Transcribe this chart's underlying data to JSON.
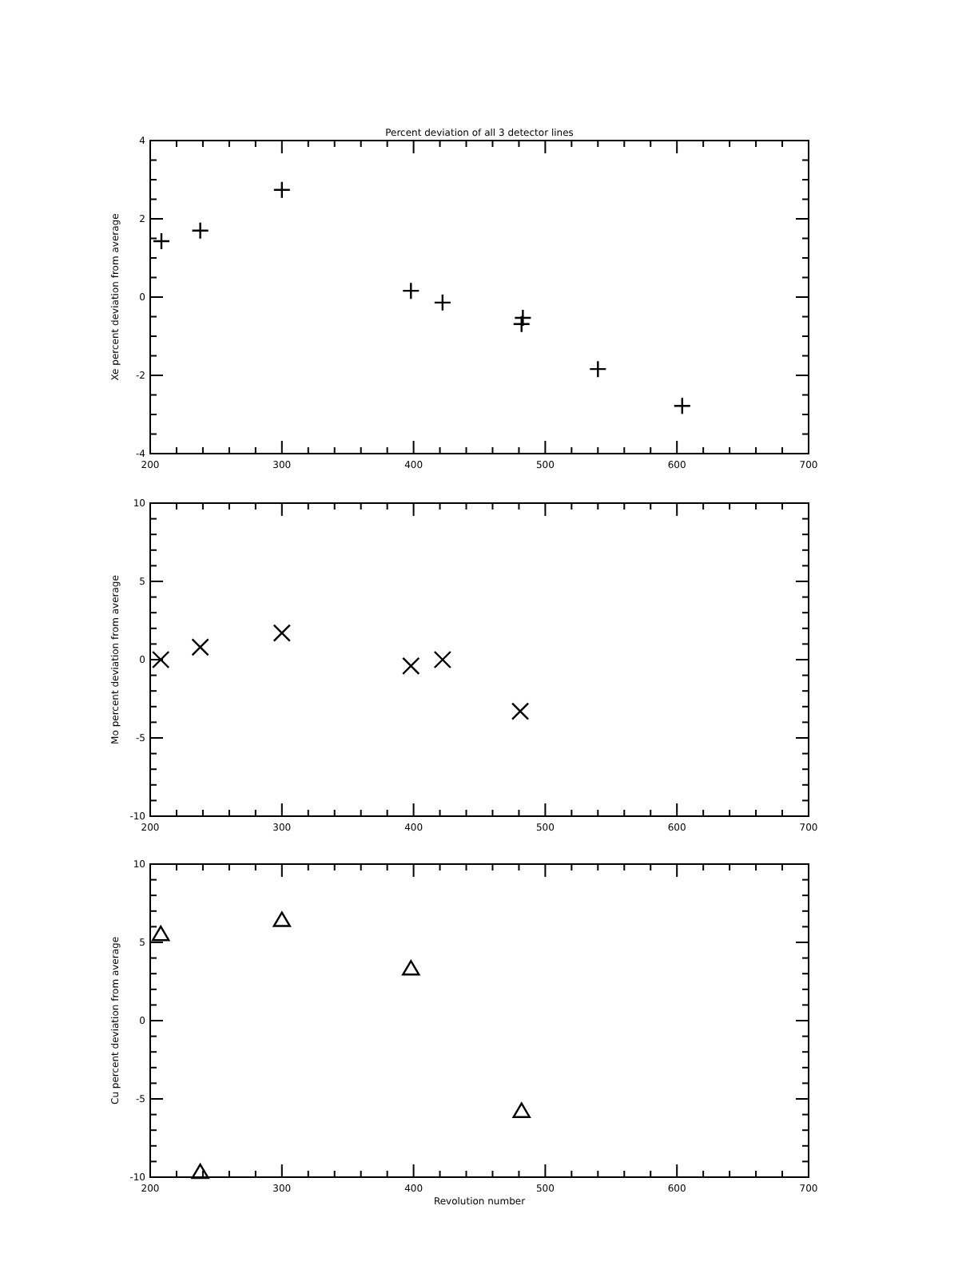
{
  "chart_data": [
    {
      "type": "scatter",
      "title": "Percent deviation of all 3 detector lines",
      "ylabel": "Xe percent deviation from average",
      "marker": "plus",
      "grid": false,
      "series": [
        {
          "color": "#000000",
          "x": [
            208.5,
            238,
            300,
            398,
            422,
            482,
            483,
            540,
            604
          ],
          "values": [
            1.43,
            1.7,
            2.74,
            0.16,
            -0.14,
            -0.69,
            -0.53,
            -1.84,
            -2.78
          ]
        }
      ],
      "xlim": [
        200,
        700
      ],
      "ylim": [
        -4,
        4
      ],
      "xticks": [
        200,
        {
          "value": 220,
          "label": null
        },
        {
          "value": 240,
          "label": null
        },
        {
          "value": 260,
          "label": null
        },
        {
          "value": 280,
          "label": null
        },
        300,
        {
          "value": 320,
          "label": null
        },
        {
          "value": 340,
          "label": null
        },
        {
          "value": 360,
          "label": null
        },
        {
          "value": 380,
          "label": null
        },
        400,
        {
          "value": 420,
          "label": null
        },
        {
          "value": 440,
          "label": null
        },
        {
          "value": 460,
          "label": null
        },
        {
          "value": 480,
          "label": null
        },
        500,
        {
          "value": 520,
          "label": null
        },
        {
          "value": 540,
          "label": null
        },
        {
          "value": 560,
          "label": null
        },
        {
          "value": 580,
          "label": null
        },
        600,
        {
          "value": 620,
          "label": null
        },
        {
          "value": 640,
          "label": null
        },
        {
          "value": 660,
          "label": null
        },
        {
          "value": 680,
          "label": null
        },
        700
      ],
      "yticks": [
        -4,
        {
          "value": -3.5,
          "label": null
        },
        {
          "value": -3,
          "label": null
        },
        {
          "value": -2.5,
          "label": null
        },
        -2,
        {
          "value": -1.5,
          "label": null
        },
        {
          "value": -1,
          "label": null
        },
        {
          "value": -0.5,
          "label": null
        },
        0,
        {
          "value": 0.5,
          "label": null
        },
        {
          "value": 1,
          "label": null
        },
        {
          "value": 1.5,
          "label": null
        },
        2,
        {
          "value": 2.5,
          "label": null
        },
        {
          "value": 3,
          "label": null
        },
        {
          "value": 3.5,
          "label": null
        },
        4
      ]
    },
    {
      "type": "scatter",
      "ylabel": "Mo percent deviation from average",
      "marker": "cross",
      "grid": false,
      "series": [
        {
          "color": "#000000",
          "x": [
            208,
            238,
            300,
            398,
            422,
            481
          ],
          "values": [
            0.0,
            0.8,
            1.7,
            -0.4,
            0.0,
            -3.3
          ]
        }
      ],
      "xlim": [
        200,
        700
      ],
      "ylim": [
        -10,
        10
      ],
      "xticks": [
        200,
        {
          "value": 220,
          "label": null
        },
        {
          "value": 240,
          "label": null
        },
        {
          "value": 260,
          "label": null
        },
        {
          "value": 280,
          "label": null
        },
        300,
        {
          "value": 320,
          "label": null
        },
        {
          "value": 340,
          "label": null
        },
        {
          "value": 360,
          "label": null
        },
        {
          "value": 380,
          "label": null
        },
        400,
        {
          "value": 420,
          "label": null
        },
        {
          "value": 440,
          "label": null
        },
        {
          "value": 460,
          "label": null
        },
        {
          "value": 480,
          "label": null
        },
        500,
        {
          "value": 520,
          "label": null
        },
        {
          "value": 540,
          "label": null
        },
        {
          "value": 560,
          "label": null
        },
        {
          "value": 580,
          "label": null
        },
        600,
        {
          "value": 620,
          "label": null
        },
        {
          "value": 640,
          "label": null
        },
        {
          "value": 660,
          "label": null
        },
        {
          "value": 680,
          "label": null
        },
        700
      ],
      "yticks": [
        -10,
        {
          "value": -9,
          "label": null
        },
        {
          "value": -8,
          "label": null
        },
        {
          "value": -7,
          "label": null
        },
        {
          "value": -6,
          "label": null
        },
        -5,
        {
          "value": -4,
          "label": null
        },
        {
          "value": -3,
          "label": null
        },
        {
          "value": -2,
          "label": null
        },
        {
          "value": -1,
          "label": null
        },
        0,
        {
          "value": 1,
          "label": null
        },
        {
          "value": 2,
          "label": null
        },
        {
          "value": 3,
          "label": null
        },
        {
          "value": 4,
          "label": null
        },
        5,
        {
          "value": 6,
          "label": null
        },
        {
          "value": 7,
          "label": null
        },
        {
          "value": 8,
          "label": null
        },
        {
          "value": 9,
          "label": null
        },
        10
      ]
    },
    {
      "type": "scatter",
      "xlabel": "Revolution number",
      "ylabel": "Cu percent deviation from average",
      "marker": "triangle",
      "grid": false,
      "series": [
        {
          "color": "#000000",
          "x": [
            208,
            238,
            300,
            398,
            482
          ],
          "values": [
            5.5,
            -9.7,
            6.4,
            3.3,
            -5.8
          ]
        }
      ],
      "xlim": [
        200,
        700
      ],
      "ylim": [
        -10,
        10
      ],
      "xticks": [
        200,
        {
          "value": 220,
          "label": null
        },
        {
          "value": 240,
          "label": null
        },
        {
          "value": 260,
          "label": null
        },
        {
          "value": 280,
          "label": null
        },
        300,
        {
          "value": 320,
          "label": null
        },
        {
          "value": 340,
          "label": null
        },
        {
          "value": 360,
          "label": null
        },
        {
          "value": 380,
          "label": null
        },
        400,
        {
          "value": 420,
          "label": null
        },
        {
          "value": 440,
          "label": null
        },
        {
          "value": 460,
          "label": null
        },
        {
          "value": 480,
          "label": null
        },
        500,
        {
          "value": 520,
          "label": null
        },
        {
          "value": 540,
          "label": null
        },
        {
          "value": 560,
          "label": null
        },
        {
          "value": 580,
          "label": null
        },
        600,
        {
          "value": 620,
          "label": null
        },
        {
          "value": 640,
          "label": null
        },
        {
          "value": 660,
          "label": null
        },
        {
          "value": 680,
          "label": null
        },
        700
      ],
      "yticks": [
        -10,
        {
          "value": -9,
          "label": null
        },
        {
          "value": -8,
          "label": null
        },
        {
          "value": -7,
          "label": null
        },
        {
          "value": -6,
          "label": null
        },
        -5,
        {
          "value": -4,
          "label": null
        },
        {
          "value": -3,
          "label": null
        },
        {
          "value": -2,
          "label": null
        },
        {
          "value": -1,
          "label": null
        },
        0,
        {
          "value": 1,
          "label": null
        },
        {
          "value": 2,
          "label": null
        },
        {
          "value": 3,
          "label": null
        },
        {
          "value": 4,
          "label": null
        },
        5,
        {
          "value": 6,
          "label": null
        },
        {
          "value": 7,
          "label": null
        },
        {
          "value": 8,
          "label": null
        },
        {
          "value": 9,
          "label": null
        },
        10
      ]
    }
  ]
}
